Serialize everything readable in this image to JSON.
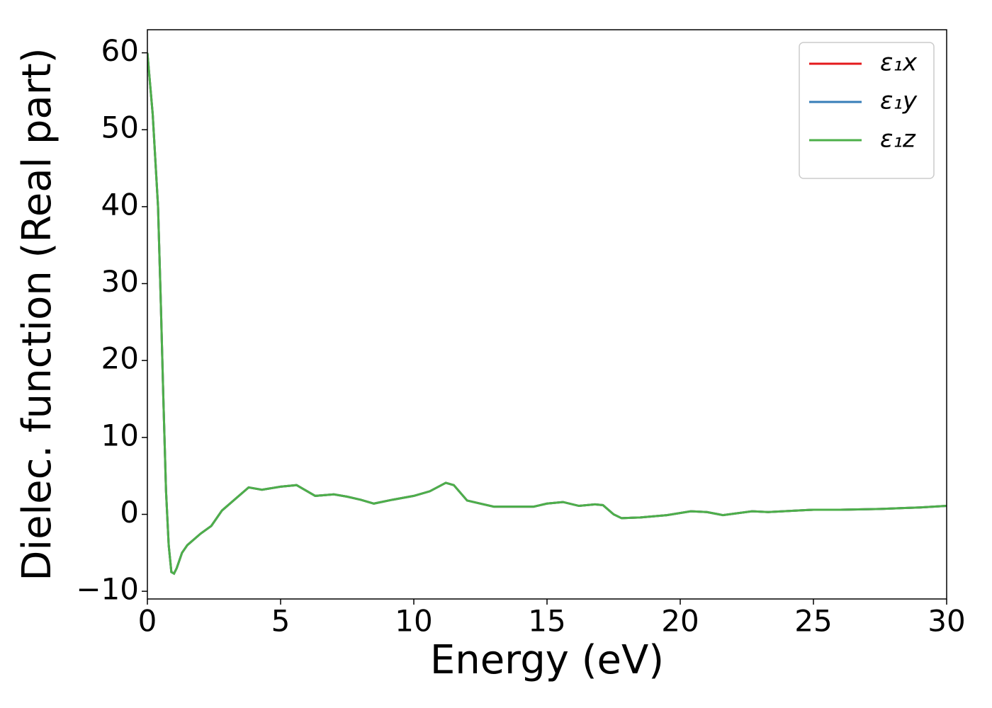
{
  "chart_data": {
    "type": "line",
    "xlabel": "Energy (eV)",
    "ylabel": "Dielec. function (Real part)",
    "x": [
      0,
      0.2,
      0.4,
      0.5,
      0.6,
      0.7,
      0.8,
      0.9,
      1.0,
      1.1,
      1.3,
      1.5,
      2.0,
      2.4,
      2.8,
      3.3,
      3.8,
      4.3,
      5.0,
      5.6,
      6.3,
      7.0,
      7.5,
      8.0,
      8.5,
      9.2,
      10.0,
      10.6,
      11.2,
      11.5,
      12.0,
      12.5,
      13.0,
      14.0,
      14.5,
      15.0,
      15.6,
      16.2,
      16.8,
      17.1,
      17.5,
      17.8,
      18.5,
      19.5,
      20.4,
      21.0,
      21.6,
      22.7,
      23.3,
      25.0,
      26.0,
      27.5,
      29.0,
      30.0
    ],
    "series": [
      {
        "name": "ε₁x",
        "color": "#e41a1c",
        "values": [
          60,
          52,
          40,
          28,
          15,
          3,
          -4,
          -7.5,
          -7.7,
          -7,
          -5,
          -4,
          -2.5,
          -1.5,
          0.5,
          2,
          3.5,
          3.2,
          3.6,
          3.8,
          2.4,
          2.6,
          2.3,
          1.9,
          1.4,
          1.9,
          2.4,
          3.0,
          4.1,
          3.8,
          1.8,
          1.4,
          1.0,
          1.0,
          1.0,
          1.4,
          1.6,
          1.1,
          1.3,
          1.2,
          0,
          -0.5,
          -0.4,
          -0.1,
          0.4,
          0.3,
          -0.1,
          0.4,
          0.3,
          0.6,
          0.6,
          0.7,
          0.9,
          1.1
        ]
      },
      {
        "name": "ε₁y",
        "color": "#377eb8",
        "values": [
          60,
          52,
          40,
          28,
          15,
          3,
          -4,
          -7.5,
          -7.7,
          -7,
          -5,
          -4,
          -2.5,
          -1.5,
          0.5,
          2,
          3.5,
          3.2,
          3.6,
          3.8,
          2.4,
          2.6,
          2.3,
          1.9,
          1.4,
          1.9,
          2.4,
          3.0,
          4.1,
          3.8,
          1.8,
          1.4,
          1.0,
          1.0,
          1.0,
          1.4,
          1.6,
          1.1,
          1.3,
          1.2,
          0,
          -0.5,
          -0.4,
          -0.1,
          0.4,
          0.3,
          -0.1,
          0.4,
          0.3,
          0.6,
          0.6,
          0.7,
          0.9,
          1.1
        ]
      },
      {
        "name": "ε₁z",
        "color": "#4daf4a",
        "values": [
          60,
          52,
          40,
          28,
          15,
          3,
          -4,
          -7.5,
          -7.7,
          -7,
          -5,
          -4,
          -2.5,
          -1.5,
          0.5,
          2,
          3.5,
          3.2,
          3.6,
          3.8,
          2.4,
          2.6,
          2.3,
          1.9,
          1.4,
          1.9,
          2.4,
          3.0,
          4.1,
          3.8,
          1.8,
          1.4,
          1.0,
          1.0,
          1.0,
          1.4,
          1.6,
          1.1,
          1.3,
          1.2,
          0,
          -0.5,
          -0.4,
          -0.1,
          0.4,
          0.3,
          -0.1,
          0.4,
          0.3,
          0.6,
          0.6,
          0.7,
          0.9,
          1.1
        ]
      }
    ],
    "xlim": [
      0,
      30
    ],
    "xticks": [
      0,
      5,
      10,
      15,
      20,
      25,
      30
    ],
    "ylim": [
      -11,
      63
    ],
    "yticks": [
      {
        "value": -10,
        "label": "−10"
      },
      0,
      10,
      20,
      30,
      40,
      50,
      60
    ],
    "grid": false,
    "legend": "upper right"
  }
}
